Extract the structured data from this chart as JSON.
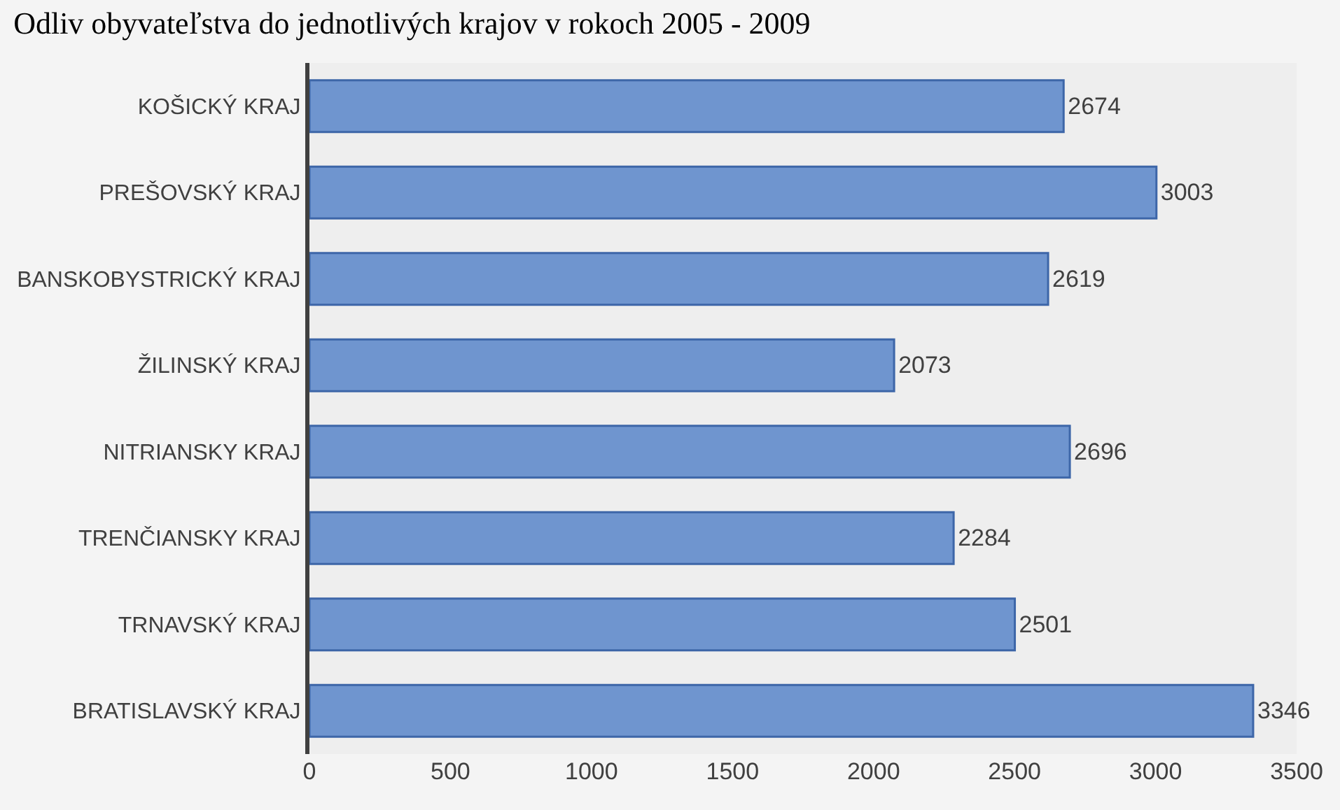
{
  "chart_data": {
    "type": "bar",
    "orientation": "horizontal",
    "title": "Odliv obyvateľstva do jednotlivých krajov v rokoch 2005 - 2009",
    "categories": [
      "KOŠICKÝ KRAJ",
      "PREŠOVSKÝ KRAJ",
      "BANSKOBYSTRICKÝ KRAJ",
      "ŽILINSKÝ KRAJ",
      "NITRIANSKY KRAJ",
      "TRENČIANSKY KRAJ",
      "TRNAVSKÝ KRAJ",
      "BRATISLAVSKÝ KRAJ"
    ],
    "values": [
      2674,
      3003,
      2619,
      2073,
      2696,
      2284,
      2501,
      3346
    ],
    "color": "#6f95cf",
    "xlim": [
      0,
      3500
    ],
    "xticks": [
      0,
      500,
      1000,
      1500,
      2000,
      2500,
      3000,
      3500
    ],
    "data_labels": true,
    "grid": false,
    "legend": false
  }
}
